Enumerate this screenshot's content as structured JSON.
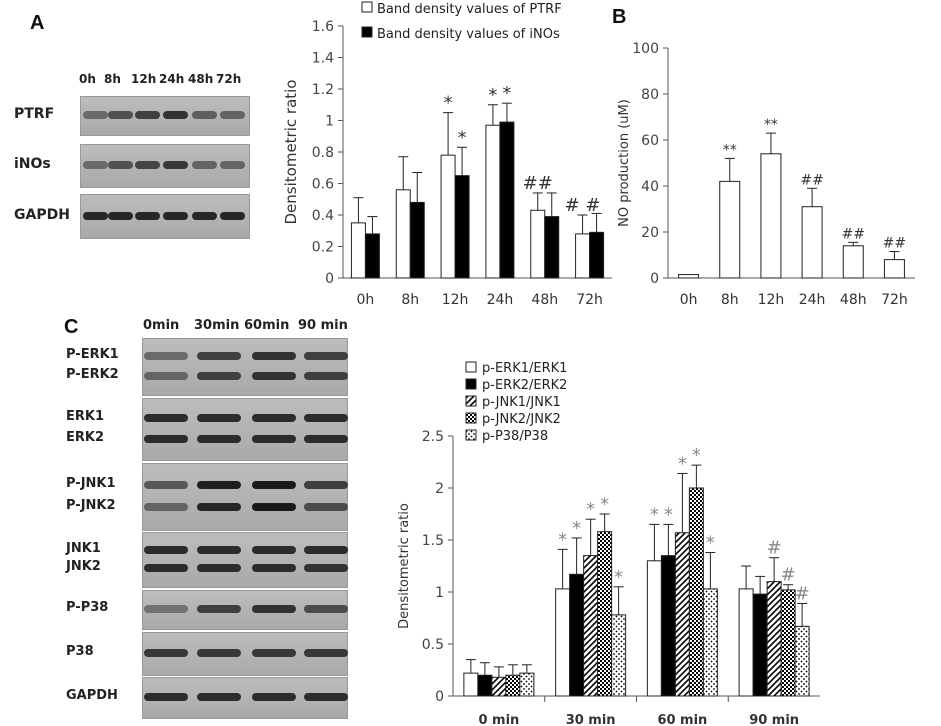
{
  "panels": {
    "a": "A",
    "b": "B",
    "c": "C"
  },
  "blot_a": {
    "times": [
      "0h",
      "8h",
      "12h",
      "24h",
      "48h",
      "72h"
    ],
    "rows": [
      "PTRF",
      "iNOs",
      "GAPDH"
    ],
    "intensity": [
      [
        0.35,
        0.55,
        0.7,
        0.8,
        0.45,
        0.4
      ],
      [
        0.35,
        0.55,
        0.65,
        0.75,
        0.4,
        0.4
      ],
      [
        0.9,
        0.9,
        0.9,
        0.9,
        0.9,
        0.9
      ]
    ]
  },
  "blot_c": {
    "times": [
      "0min",
      "30min",
      "60min",
      "90 min"
    ],
    "rows": [
      {
        "labels": [
          "P-ERK1",
          "P-ERK2"
        ],
        "intensity": [
          [
            0.35,
            0.7,
            0.8,
            0.7
          ],
          [
            0.4,
            0.7,
            0.8,
            0.7
          ]
        ]
      },
      {
        "labels": [
          "ERK1",
          "ERK2"
        ],
        "intensity": [
          [
            0.85,
            0.85,
            0.85,
            0.85
          ],
          [
            0.85,
            0.85,
            0.85,
            0.85
          ]
        ]
      },
      {
        "labels": [
          "P-JNK1",
          "P-JNK2"
        ],
        "intensity": [
          [
            0.5,
            0.95,
            1.0,
            0.7
          ],
          [
            0.4,
            0.9,
            1.0,
            0.6
          ]
        ]
      },
      {
        "labels": [
          "JNK1",
          "JNK2"
        ],
        "intensity": [
          [
            0.85,
            0.85,
            0.85,
            0.85
          ],
          [
            0.85,
            0.85,
            0.85,
            0.8
          ]
        ]
      },
      {
        "labels": [
          "P-P38"
        ],
        "intensity": [
          [
            0.3,
            0.7,
            0.8,
            0.6
          ]
        ]
      },
      {
        "labels": [
          "P38"
        ],
        "intensity": [
          [
            0.75,
            0.75,
            0.75,
            0.75
          ]
        ]
      },
      {
        "labels": [
          "GAPDH"
        ],
        "intensity": [
          [
            0.85,
            0.85,
            0.85,
            0.85
          ]
        ]
      }
    ]
  },
  "chart_data": [
    {
      "type": "bar",
      "ylabel": "Densitometric ratio",
      "categories": [
        "0h",
        "8h",
        "12h",
        "24h",
        "48h",
        "72h"
      ],
      "ylim": [
        0,
        1.6
      ],
      "yticks": [
        "0",
        "0.2",
        "0.4",
        "0.6",
        "0.8",
        "1",
        "1.2",
        "1.4",
        "1.6"
      ],
      "legend_position": "top",
      "series": [
        {
          "name": "Band density values of PTRF",
          "fill": "#ffffff",
          "values": [
            0.35,
            0.56,
            0.78,
            0.97,
            0.43,
            0.28
          ],
          "errors": [
            0.16,
            0.21,
            0.27,
            0.13,
            0.11,
            0.12
          ],
          "annotations": [
            "",
            "",
            "*",
            "*",
            "##",
            "# #"
          ]
        },
        {
          "name": "Band density values of iNOs",
          "fill": "#000000",
          "values": [
            0.28,
            0.48,
            0.65,
            0.99,
            0.39,
            0.29
          ],
          "errors": [
            0.11,
            0.19,
            0.18,
            0.12,
            0.15,
            0.12
          ],
          "annotations": [
            "",
            "",
            "*",
            "*",
            "",
            ""
          ]
        }
      ]
    },
    {
      "type": "bar",
      "ylabel": "NO production (uM)",
      "categories": [
        "0h",
        "8h",
        "12h",
        "24h",
        "48h",
        "72h"
      ],
      "ylim": [
        0,
        100
      ],
      "yticks": [
        "0",
        "20",
        "40",
        "60",
        "80",
        "100"
      ],
      "series": [
        {
          "fill": "#ffffff",
          "values": [
            1.5,
            42,
            54,
            31,
            14,
            8
          ],
          "errors": [
            0,
            10,
            9,
            8,
            1.5,
            3.5
          ],
          "annotations": [
            "",
            "**",
            "**",
            "##",
            "##",
            "##"
          ]
        }
      ]
    },
    {
      "type": "bar",
      "ylabel": "Densitometric ratio",
      "categories": [
        "0 min",
        "30 min",
        "60 min",
        "90 min"
      ],
      "ylim": [
        0,
        2.5
      ],
      "yticks": [
        "0",
        "0.5",
        "1",
        "1.5",
        "2",
        "2.5"
      ],
      "legend_position": "top-left",
      "series": [
        {
          "name": "p-ERK1/ERK1",
          "pattern": "white",
          "values": [
            0.22,
            1.03,
            1.3,
            1.03
          ],
          "errors": [
            0.13,
            0.38,
            0.35,
            0.22
          ],
          "annotations": [
            "",
            "*",
            "*",
            ""
          ]
        },
        {
          "name": "p-ERK2/ERK2",
          "pattern": "black",
          "values": [
            0.2,
            1.17,
            1.35,
            0.98
          ],
          "errors": [
            0.12,
            0.35,
            0.3,
            0.17
          ],
          "annotations": [
            "",
            "*",
            "*",
            ""
          ]
        },
        {
          "name": "p-JNK1/JNK1",
          "pattern": "diagonal",
          "values": [
            0.18,
            1.35,
            1.57,
            1.1
          ],
          "errors": [
            0.1,
            0.35,
            0.57,
            0.23
          ],
          "annotations": [
            "",
            "*",
            "*",
            "#"
          ]
        },
        {
          "name": "p-JNK2/JNK2",
          "pattern": "checker",
          "values": [
            0.2,
            1.58,
            2.0,
            1.02
          ],
          "errors": [
            0.1,
            0.17,
            0.22,
            0.05
          ],
          "annotations": [
            "",
            "*",
            "*",
            "#"
          ]
        },
        {
          "name": "p-P38/P38",
          "pattern": "dots",
          "values": [
            0.22,
            0.78,
            1.03,
            0.67
          ],
          "errors": [
            0.08,
            0.27,
            0.35,
            0.22
          ],
          "annotations": [
            "",
            "*",
            "*",
            "#"
          ]
        }
      ]
    }
  ]
}
